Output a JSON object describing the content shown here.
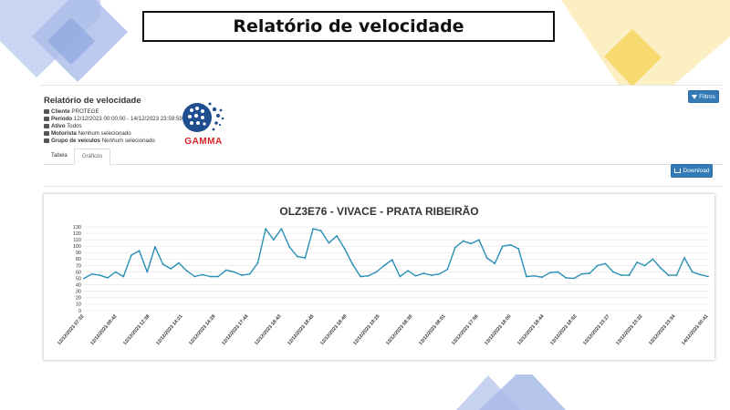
{
  "slide_title": "Relatório de velocidade",
  "brand": {
    "logo_text": "GAMMA",
    "logo_color": "#d9232a"
  },
  "report": {
    "title": "Relatório de velocidade",
    "client_label": "Cliente",
    "client_value": "PROTEGE",
    "period_label": "Período",
    "period_value": "12/12/2023 00:00:00 - 14/12/2023 23:59:59",
    "active_label": "Ativo",
    "active_value": "Todos",
    "driver_label": "Motorista",
    "driver_value": "Nenhum selecionado",
    "group_label": "Grupo de veículos",
    "group_value": "Nenhum selecionado"
  },
  "tabs": [
    {
      "label": "Tabela"
    },
    {
      "label": "Gráficos"
    }
  ],
  "buttons": {
    "filters": "Filtros",
    "download": "Download"
  },
  "colors": {
    "primary": "#337ab7",
    "line": "#2a8fb5",
    "deco_blue": "#8ea6de",
    "deco_yellow": "#f8df8a"
  },
  "chart_data": {
    "type": "line",
    "title": "OLZ3E76 - VIVACE - PRATA RIBEIRÃO",
    "ylim": [
      0,
      130
    ],
    "yticks": [
      0,
      10,
      20,
      30,
      40,
      50,
      60,
      70,
      80,
      90,
      100,
      110,
      120,
      130
    ],
    "xticks": [
      "12/12/2023 07:32",
      "12/12/2023 09:42",
      "12/12/2023 12:38",
      "12/12/2023 14:21",
      "12/12/2023 14:29",
      "12/12/2023 17:44",
      "12/12/2023 18:43",
      "12/12/2023 18:45",
      "12/12/2023 18:49",
      "12/12/2023 19:25",
      "13/12/2023 08:30",
      "13/12/2023 08:51",
      "13/12/2023 17:56",
      "13/12/2023 18:00",
      "13/12/2023 18:44",
      "13/12/2023 18:52",
      "13/12/2023 23:27",
      "13/12/2023 23:32",
      "13/12/2023 23:34",
      "14/12/2023 00:41"
    ],
    "values": [
      50,
      57,
      55,
      51,
      60,
      53,
      86,
      93,
      60,
      99,
      72,
      65,
      74,
      62,
      53,
      56,
      53,
      53,
      63,
      60,
      55,
      57,
      74,
      127,
      110,
      127,
      99,
      84,
      82,
      127,
      124,
      105,
      116,
      96,
      72,
      53,
      54,
      60,
      70,
      79,
      53,
      62,
      54,
      58,
      55,
      57,
      64,
      98,
      108,
      104,
      110,
      82,
      73,
      100,
      102,
      96,
      53,
      54,
      52,
      59,
      60,
      51,
      50,
      57,
      58,
      70,
      73,
      60,
      55,
      55,
      75,
      70,
      80,
      66,
      55,
      55,
      82,
      60,
      56,
      53
    ]
  }
}
